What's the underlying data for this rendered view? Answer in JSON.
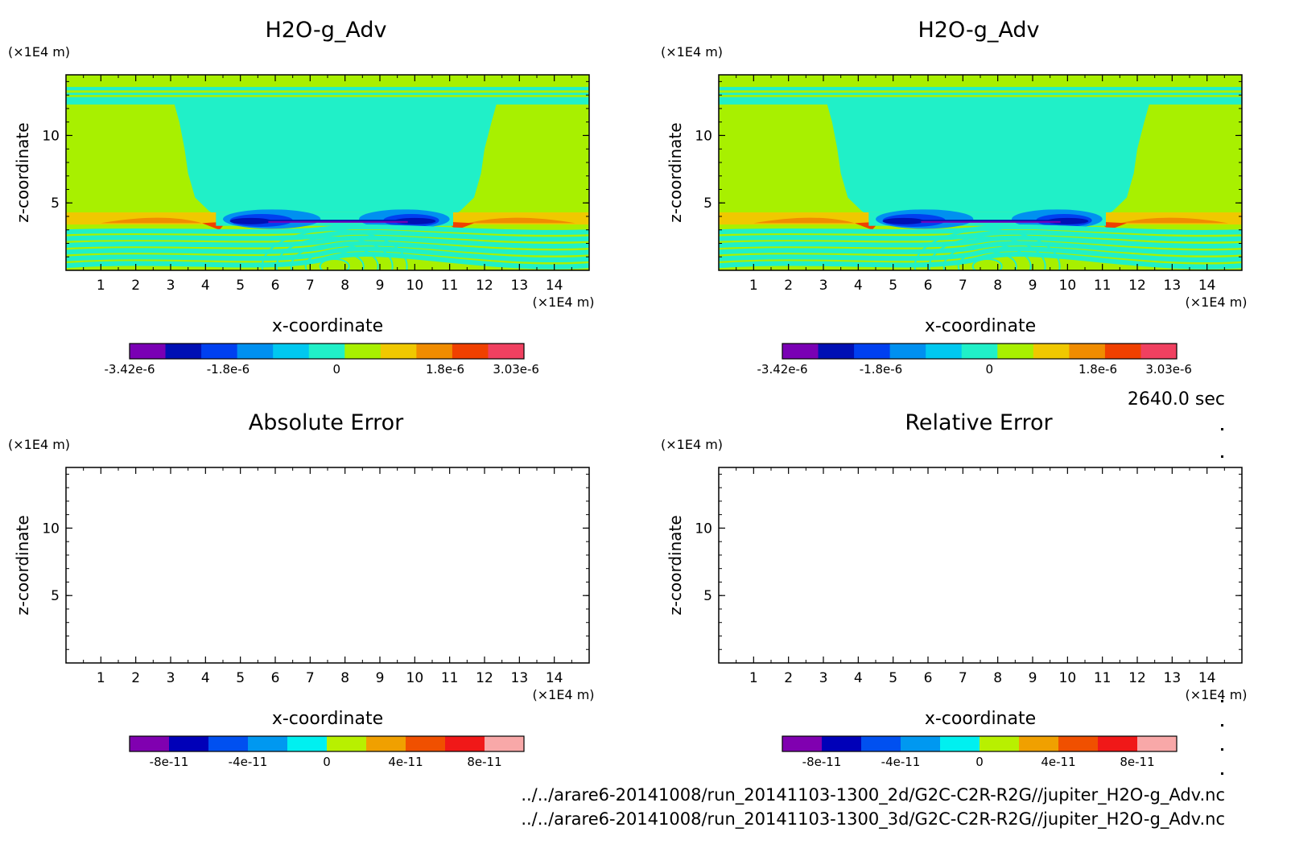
{
  "time_label": "2640.0 sec",
  "files": [
    "../../arare6-20141008/run_20141103-1300_2d/G2C-C2R-R2G//jupiter_H2O-g_Adv.nc",
    "../../arare6-20141008/run_20141103-1300_3d/G2C-C2R-R2G//jupiter_H2O-g_Adv.nc"
  ],
  "chart_data": [
    {
      "type": "heatmap",
      "title": "H2O-g_Adv",
      "xlabel": "x-coordinate",
      "ylabel": "z-coordinate",
      "x_unit": "(×1E4 m)",
      "y_unit": "(×1E4 m)",
      "xlim": [
        0,
        15
      ],
      "ylim": [
        0,
        14.5
      ],
      "xticks": [
        "1",
        "2",
        "3",
        "4",
        "5",
        "6",
        "7",
        "8",
        "9",
        "10",
        "11",
        "12",
        "13",
        "14"
      ],
      "yticks": [
        "5",
        "10"
      ],
      "colorbar": {
        "min": -3.42e-06,
        "max": 3.03e-06,
        "labels": [
          "-3.42e-6",
          "-1.8e-6",
          "0",
          "1.8e-6",
          "3.03e-6"
        ],
        "colors": [
          "#7a00b4",
          "#0010b4",
          "#0040f0",
          "#0090f0",
          "#00c8f0",
          "#20f0c8",
          "#a8f000",
          "#f0c800",
          "#f08c00",
          "#f04000",
          "#f04060"
        ]
      }
    },
    {
      "type": "heatmap",
      "title": "H2O-g_Adv",
      "xlabel": "x-coordinate",
      "ylabel": "z-coordinate",
      "x_unit": "(×1E4 m)",
      "y_unit": "(×1E4 m)",
      "xlim": [
        0,
        15
      ],
      "ylim": [
        0,
        14.5
      ],
      "xticks": [
        "1",
        "2",
        "3",
        "4",
        "5",
        "6",
        "7",
        "8",
        "9",
        "10",
        "11",
        "12",
        "13",
        "14"
      ],
      "yticks": [
        "5",
        "10"
      ],
      "colorbar": {
        "min": -3.42e-06,
        "max": 3.03e-06,
        "labels": [
          "-3.42e-6",
          "-1.8e-6",
          "0",
          "1.8e-6",
          "3.03e-6"
        ],
        "colors": [
          "#7a00b4",
          "#0010b4",
          "#0040f0",
          "#0090f0",
          "#00c8f0",
          "#20f0c8",
          "#a8f000",
          "#f0c800",
          "#f08c00",
          "#f04000",
          "#f04060"
        ]
      }
    },
    {
      "type": "heatmap",
      "title": "Absolute Error",
      "xlabel": "x-coordinate",
      "ylabel": "z-coordinate",
      "x_unit": "(×1E4 m)",
      "y_unit": "(×1E4 m)",
      "xlim": [
        0,
        15
      ],
      "ylim": [
        0,
        14.5
      ],
      "xticks": [
        "1",
        "2",
        "3",
        "4",
        "5",
        "6",
        "7",
        "8",
        "9",
        "10",
        "11",
        "12",
        "13",
        "14"
      ],
      "yticks": [
        "5",
        "10"
      ],
      "colorbar": {
        "labels": [
          "-8e-11",
          "-4e-11",
          "0",
          "4e-11",
          "8e-11"
        ],
        "colors": [
          "#8000b0",
          "#0000b8",
          "#0050f0",
          "#0098f0",
          "#00f0f0",
          "#b8f000",
          "#f0a000",
          "#f05000",
          "#f01818",
          "#f8a8a8"
        ]
      }
    },
    {
      "type": "heatmap",
      "title": "Relative Error",
      "xlabel": "x-coordinate",
      "ylabel": "z-coordinate",
      "x_unit": "(×1E4 m)",
      "y_unit": "(×1E4 m)",
      "xlim": [
        0,
        15
      ],
      "ylim": [
        0,
        14.5
      ],
      "xticks": [
        "1",
        "2",
        "3",
        "4",
        "5",
        "6",
        "7",
        "8",
        "9",
        "10",
        "11",
        "12",
        "13",
        "14"
      ],
      "yticks": [
        "5",
        "10"
      ],
      "colorbar": {
        "labels": [
          "-8e-11",
          "-4e-11",
          "0",
          "4e-11",
          "8e-11"
        ],
        "colors": [
          "#8000b0",
          "#0000b8",
          "#0050f0",
          "#0098f0",
          "#00f0f0",
          "#b8f000",
          "#f0a000",
          "#f05000",
          "#f01818",
          "#f8a8a8"
        ]
      }
    }
  ]
}
